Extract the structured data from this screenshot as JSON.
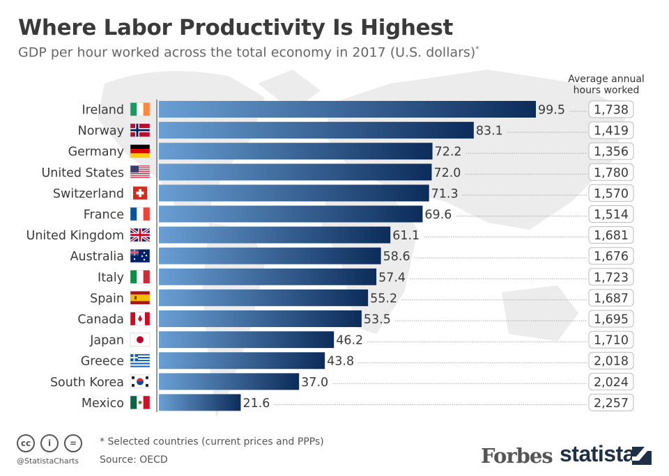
{
  "title": "Where Labor Productivity Is Highest",
  "subtitle": "GDP per hour worked across the total economy in 2017 (U.S. dollars)",
  "subtitle_mark": "*",
  "hours_header": "Average annual hours worked",
  "footnote": "* Selected countries (current prices and PPPs)",
  "source": "Source: OECD",
  "handle": "@StatistaCharts",
  "license_icons": [
    "cc",
    "i",
    "="
  ],
  "brands": {
    "forbes": "Forbes",
    "statista": "statista"
  },
  "colors": {
    "bar_light": "#6a9fd4",
    "bar_dark": "#0c2c5a",
    "text": "#3a3a3a",
    "map": "#e9e9e9"
  },
  "chart_data": {
    "type": "bar",
    "orientation": "horizontal",
    "title": "Where Labor Productivity Is Highest",
    "categories": [
      "Ireland",
      "Norway",
      "Germany",
      "United States",
      "Switzerland",
      "France",
      "United Kingdom",
      "Australia",
      "Italy",
      "Spain",
      "Canada",
      "Japan",
      "Greece",
      "South Korea",
      "Mexico"
    ],
    "flags": [
      "ireland-flag",
      "norway-flag",
      "germany-flag",
      "usa-flag",
      "switzerland-flag",
      "france-flag",
      "uk-flag",
      "australia-flag",
      "italy-flag",
      "spain-flag",
      "canada-flag",
      "japan-flag",
      "greece-flag",
      "south-korea-flag",
      "mexico-flag"
    ],
    "values": [
      99.5,
      83.1,
      72.2,
      72.0,
      71.3,
      69.6,
      61.1,
      58.6,
      57.4,
      55.2,
      53.5,
      46.2,
      43.8,
      37.0,
      21.6
    ],
    "value_labels": [
      "99.5",
      "83.1",
      "72.2",
      "72.0",
      "71.3",
      "69.6",
      "61.1",
      "58.6",
      "57.4",
      "55.2",
      "53.5",
      "46.2",
      "43.8",
      "37.0",
      "21.6"
    ],
    "hours": [
      "1,738",
      "1,419",
      "1,356",
      "1,780",
      "1,570",
      "1,514",
      "1,681",
      "1,676",
      "1,723",
      "1,687",
      "1,695",
      "1,710",
      "2,018",
      "2,024",
      "2,257"
    ],
    "xlim": [
      0,
      100
    ],
    "grid": false
  }
}
